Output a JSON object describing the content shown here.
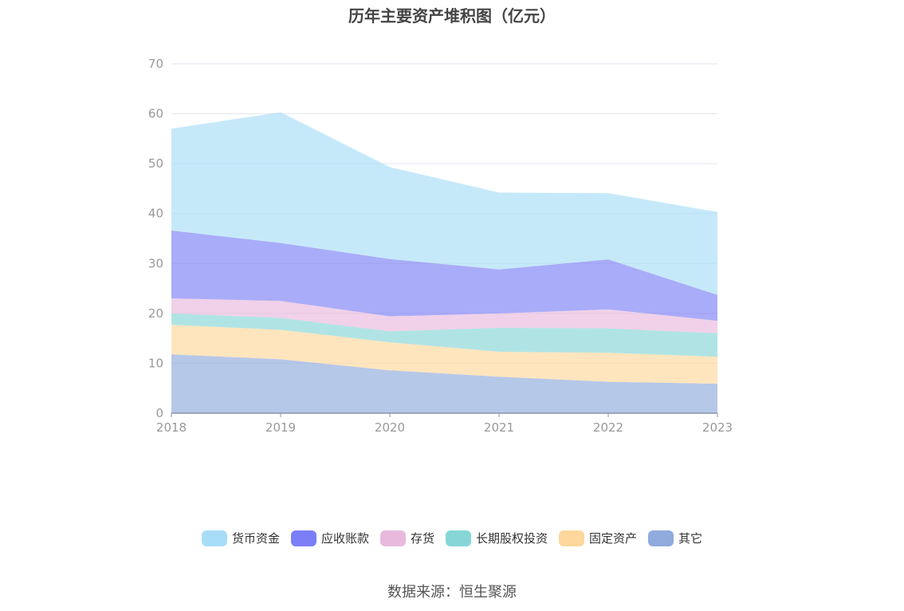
{
  "chart_data": {
    "type": "area",
    "stacked": true,
    "title": "历年主要资产堆积图（亿元）",
    "categories": [
      "2018",
      "2019",
      "2020",
      "2021",
      "2022",
      "2023"
    ],
    "ylim": [
      0,
      70
    ],
    "yticks": [
      0,
      10,
      20,
      30,
      40,
      50,
      60,
      70
    ],
    "grid": true,
    "legend_position": "bottom",
    "series": [
      {
        "name": "其它",
        "color": "#8faadc",
        "values": [
          11.8,
          10.8,
          8.6,
          7.3,
          6.3,
          5.9
        ]
      },
      {
        "name": "固定资产",
        "color": "#fdd79b",
        "values": [
          5.9,
          5.9,
          5.6,
          5.0,
          5.8,
          5.4
        ]
      },
      {
        "name": "长期股权投资",
        "color": "#86d6d6",
        "values": [
          2.3,
          2.4,
          2.2,
          4.8,
          4.9,
          4.7
        ]
      },
      {
        "name": "存货",
        "color": "#e8b9dd",
        "values": [
          3.0,
          3.4,
          3.0,
          2.9,
          3.8,
          2.5
        ]
      },
      {
        "name": "应收账款",
        "color": "#7b7ff5",
        "values": [
          13.6,
          11.6,
          11.5,
          8.8,
          10.0,
          5.2
        ]
      },
      {
        "name": "货币资金",
        "color": "#a8ddf8",
        "values": [
          20.4,
          26.2,
          18.4,
          15.4,
          13.3,
          16.6
        ]
      }
    ]
  },
  "legend_order": [
    "货币资金",
    "应收账款",
    "存货",
    "长期股权投资",
    "固定资产",
    "其它"
  ],
  "source": "数据来源：恒生聚源"
}
